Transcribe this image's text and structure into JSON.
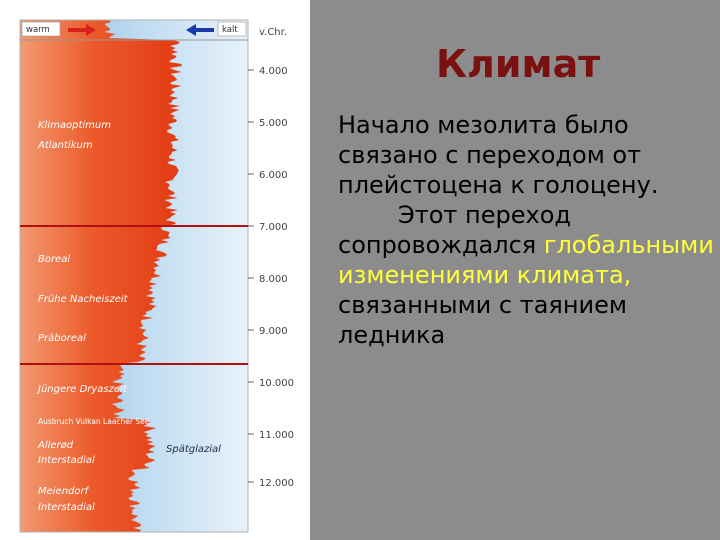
{
  "figure": {
    "header": {
      "warm": "warm",
      "kalt": "kalt",
      "unit": "v.Chr."
    },
    "ticks": [
      "4.000",
      "5.000",
      "6.000",
      "7.000",
      "8.000",
      "9.000",
      "10.000",
      "11.000",
      "12.000"
    ],
    "periods": [
      {
        "label": "Klimaoptimum",
        "style": "light"
      },
      {
        "label": "Atlantikum",
        "style": "light"
      },
      {
        "label": "Boreal",
        "style": "light"
      },
      {
        "label": "Frühe Nacheiszeit",
        "style": "light"
      },
      {
        "label": "Präboreal",
        "style": "light"
      },
      {
        "label": "Jüngere Dryaszeit",
        "style": "light"
      },
      {
        "label": "Ausbruch Vulkan Laacher See",
        "style": "tiny"
      },
      {
        "label": "Allerød",
        "style": "light"
      },
      {
        "label": "Interstadial",
        "style": "light"
      },
      {
        "label": "Spätglazial",
        "style": "dark"
      },
      {
        "label": "Meiendorf",
        "style": "light"
      },
      {
        "label": "Interstadial",
        "style": "light"
      }
    ],
    "colors": {
      "warm": "#e8401a",
      "cold": "#9cc6e6",
      "boundary": "#b01010",
      "arrow_warm": "#d8201a",
      "arrow_cold": "#1a3aa8"
    }
  },
  "slide": {
    "title": "Климат",
    "p1": "Начало мезолита было связано с переходом от плейстоцена к голоцену.",
    "p2_plain_1": "Этот переход сопровождался ",
    "p2_highlight": "глобальными изменениями климата,",
    "p2_plain_2": " связанными с таянием ледника",
    "highlight_color": "#ffff3a",
    "title_color": "#7a1010"
  }
}
